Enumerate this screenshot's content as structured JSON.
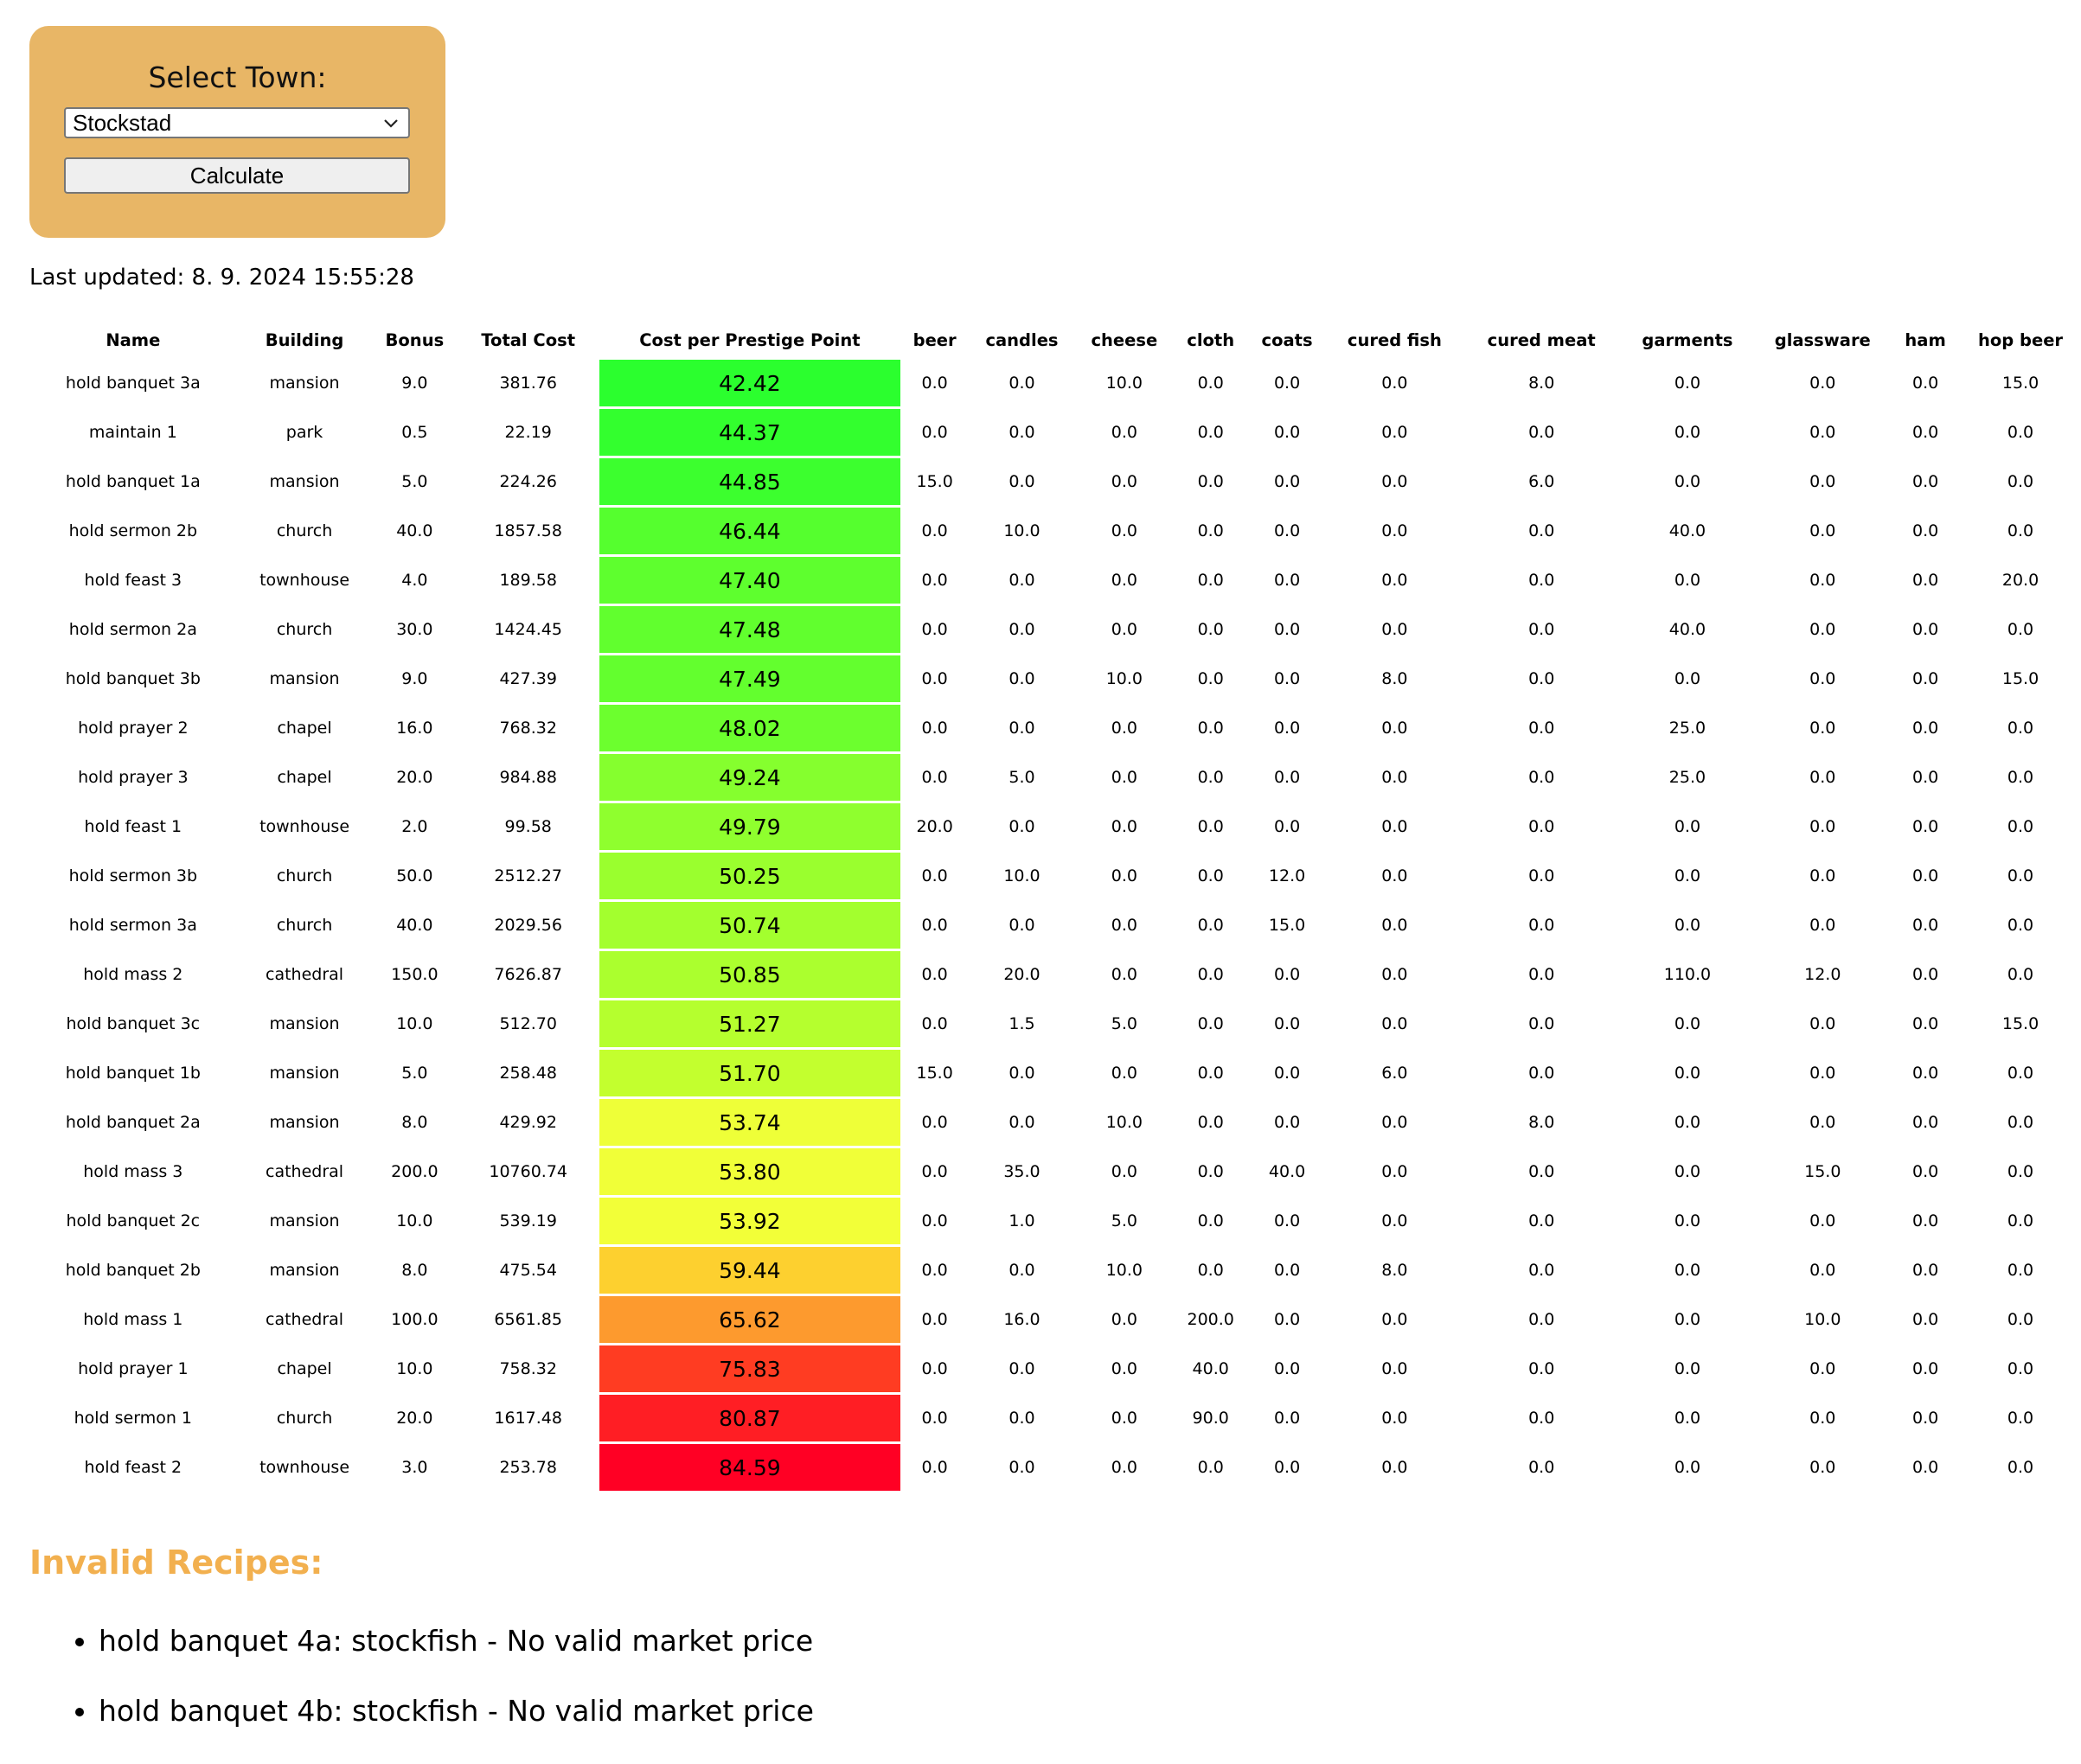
{
  "form": {
    "label": "Select Town:",
    "selected_town": "Stockstad",
    "calculate_label": "Calculate"
  },
  "last_updated": "Last updated: 8. 9. 2024 15:55:28",
  "table": {
    "headers": [
      "Name",
      "Building",
      "Bonus",
      "Total Cost",
      "Cost per Prestige Point",
      "beer",
      "candles",
      "cheese",
      "cloth",
      "coats",
      "cured fish",
      "cured meat",
      "garments",
      "glassware",
      "ham",
      "hop beer"
    ],
    "rows": [
      {
        "cells": [
          "hold banquet 3a",
          "mansion",
          "9.0",
          "381.76",
          "42.42",
          "0.0",
          "0.0",
          "10.0",
          "0.0",
          "0.0",
          "0.0",
          "8.0",
          "0.0",
          "0.0",
          "0.0",
          "15.0"
        ],
        "color": "#2bff2e"
      },
      {
        "cells": [
          "maintain 1",
          "park",
          "0.5",
          "22.19",
          "44.37",
          "0.0",
          "0.0",
          "0.0",
          "0.0",
          "0.0",
          "0.0",
          "0.0",
          "0.0",
          "0.0",
          "0.0",
          "0.0"
        ],
        "color": "#33ff2e"
      },
      {
        "cells": [
          "hold banquet 1a",
          "mansion",
          "5.0",
          "224.26",
          "44.85",
          "15.0",
          "0.0",
          "0.0",
          "0.0",
          "0.0",
          "0.0",
          "6.0",
          "0.0",
          "0.0",
          "0.0",
          "0.0"
        ],
        "color": "#3cff2e"
      },
      {
        "cells": [
          "hold sermon 2b",
          "church",
          "40.0",
          "1857.58",
          "46.44",
          "0.0",
          "10.0",
          "0.0",
          "0.0",
          "0.0",
          "0.0",
          "0.0",
          "40.0",
          "0.0",
          "0.0",
          "0.0"
        ],
        "color": "#55ff2e"
      },
      {
        "cells": [
          "hold feast 3",
          "townhouse",
          "4.0",
          "189.58",
          "47.40",
          "0.0",
          "0.0",
          "0.0",
          "0.0",
          "0.0",
          "0.0",
          "0.0",
          "0.0",
          "0.0",
          "0.0",
          "20.0"
        ],
        "color": "#5eff2e"
      },
      {
        "cells": [
          "hold sermon 2a",
          "church",
          "30.0",
          "1424.45",
          "47.48",
          "0.0",
          "0.0",
          "0.0",
          "0.0",
          "0.0",
          "0.0",
          "0.0",
          "40.0",
          "0.0",
          "0.0",
          "0.0"
        ],
        "color": "#61ff2e"
      },
      {
        "cells": [
          "hold banquet 3b",
          "mansion",
          "9.0",
          "427.39",
          "47.49",
          "0.0",
          "0.0",
          "10.0",
          "0.0",
          "0.0",
          "8.0",
          "0.0",
          "0.0",
          "0.0",
          "0.0",
          "15.0"
        ],
        "color": "#63ff2e"
      },
      {
        "cells": [
          "hold prayer 2",
          "chapel",
          "16.0",
          "768.32",
          "48.02",
          "0.0",
          "0.0",
          "0.0",
          "0.0",
          "0.0",
          "0.0",
          "0.0",
          "25.0",
          "0.0",
          "0.0",
          "0.0"
        ],
        "color": "#6cff2e"
      },
      {
        "cells": [
          "hold prayer 3",
          "chapel",
          "20.0",
          "984.88",
          "49.24",
          "0.0",
          "5.0",
          "0.0",
          "0.0",
          "0.0",
          "0.0",
          "0.0",
          "25.0",
          "0.0",
          "0.0",
          "0.0"
        ],
        "color": "#85ff2e"
      },
      {
        "cells": [
          "hold feast 1",
          "townhouse",
          "2.0",
          "99.58",
          "49.79",
          "20.0",
          "0.0",
          "0.0",
          "0.0",
          "0.0",
          "0.0",
          "0.0",
          "0.0",
          "0.0",
          "0.0",
          "0.0"
        ],
        "color": "#8fff2e"
      },
      {
        "cells": [
          "hold sermon 3b",
          "church",
          "50.0",
          "2512.27",
          "50.25",
          "0.0",
          "10.0",
          "0.0",
          "0.0",
          "12.0",
          "0.0",
          "0.0",
          "0.0",
          "0.0",
          "0.0",
          "0.0"
        ],
        "color": "#9aff2e"
      },
      {
        "cells": [
          "hold sermon 3a",
          "church",
          "40.0",
          "2029.56",
          "50.74",
          "0.0",
          "0.0",
          "0.0",
          "0.0",
          "15.0",
          "0.0",
          "0.0",
          "0.0",
          "0.0",
          "0.0",
          "0.0"
        ],
        "color": "#a3ff2e"
      },
      {
        "cells": [
          "hold mass 2",
          "cathedral",
          "150.0",
          "7626.87",
          "50.85",
          "0.0",
          "20.0",
          "0.0",
          "0.0",
          "0.0",
          "0.0",
          "0.0",
          "110.0",
          "12.0",
          "0.0",
          "0.0"
        ],
        "color": "#abff2e"
      },
      {
        "cells": [
          "hold banquet 3c",
          "mansion",
          "10.0",
          "512.70",
          "51.27",
          "0.0",
          "1.5",
          "5.0",
          "0.0",
          "0.0",
          "0.0",
          "0.0",
          "0.0",
          "0.0",
          "0.0",
          "15.0"
        ],
        "color": "#b5ff2e"
      },
      {
        "cells": [
          "hold banquet 1b",
          "mansion",
          "5.0",
          "258.48",
          "51.70",
          "15.0",
          "0.0",
          "0.0",
          "0.0",
          "0.0",
          "6.0",
          "0.0",
          "0.0",
          "0.0",
          "0.0",
          "0.0"
        ],
        "color": "#c3ff2e"
      },
      {
        "cells": [
          "hold banquet 2a",
          "mansion",
          "8.0",
          "429.92",
          "53.74",
          "0.0",
          "0.0",
          "10.0",
          "0.0",
          "0.0",
          "0.0",
          "8.0",
          "0.0",
          "0.0",
          "0.0",
          "0.0"
        ],
        "color": "#eeff38"
      },
      {
        "cells": [
          "hold mass 3",
          "cathedral",
          "200.0",
          "10760.74",
          "53.80",
          "0.0",
          "35.0",
          "0.0",
          "0.0",
          "40.0",
          "0.0",
          "0.0",
          "0.0",
          "15.0",
          "0.0",
          "0.0"
        ],
        "color": "#f0ff38"
      },
      {
        "cells": [
          "hold banquet 2c",
          "mansion",
          "10.0",
          "539.19",
          "53.92",
          "0.0",
          "1.0",
          "5.0",
          "0.0",
          "0.0",
          "0.0",
          "0.0",
          "0.0",
          "0.0",
          "0.0",
          "0.0"
        ],
        "color": "#f2ff38"
      },
      {
        "cells": [
          "hold banquet 2b",
          "mansion",
          "8.0",
          "475.54",
          "59.44",
          "0.0",
          "0.0",
          "10.0",
          "0.0",
          "0.0",
          "8.0",
          "0.0",
          "0.0",
          "0.0",
          "0.0",
          "0.0"
        ],
        "color": "#fdd02f"
      },
      {
        "cells": [
          "hold mass 1",
          "cathedral",
          "100.0",
          "6561.85",
          "65.62",
          "0.0",
          "16.0",
          "0.0",
          "200.0",
          "0.0",
          "0.0",
          "0.0",
          "0.0",
          "10.0",
          "0.0",
          "0.0"
        ],
        "color": "#fd9a2e"
      },
      {
        "cells": [
          "hold prayer 1",
          "chapel",
          "10.0",
          "758.32",
          "75.83",
          "0.0",
          "0.0",
          "0.0",
          "40.0",
          "0.0",
          "0.0",
          "0.0",
          "0.0",
          "0.0",
          "0.0",
          "0.0"
        ],
        "color": "#ff3c22"
      },
      {
        "cells": [
          "hold sermon 1",
          "church",
          "20.0",
          "1617.48",
          "80.87",
          "0.0",
          "0.0",
          "0.0",
          "90.0",
          "0.0",
          "0.0",
          "0.0",
          "0.0",
          "0.0",
          "0.0",
          "0.0"
        ],
        "color": "#ff1e24"
      },
      {
        "cells": [
          "hold feast 2",
          "townhouse",
          "3.0",
          "253.78",
          "84.59",
          "0.0",
          "0.0",
          "0.0",
          "0.0",
          "0.0",
          "0.0",
          "0.0",
          "0.0",
          "0.0",
          "0.0",
          "0.0"
        ],
        "color": "#ff0024"
      }
    ]
  },
  "invalid": {
    "title": "Invalid Recipes:",
    "items": [
      "hold banquet 4a: stockfish - No valid market price",
      "hold banquet 4b: stockfish - No valid market price"
    ]
  },
  "colors": {
    "panel": "#e8b666",
    "invalid_title": "#f2b04f"
  }
}
